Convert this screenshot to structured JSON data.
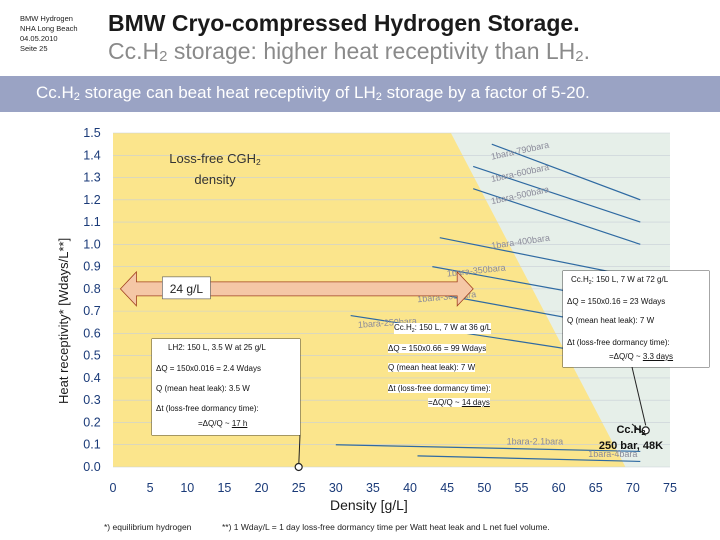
{
  "meta": [
    "BMW Hydrogen",
    "NHA Long Beach",
    "04.05.2010",
    "Seite 25"
  ],
  "header": {
    "title": "BMW Cryo-compressed Hydrogen Storage.",
    "subtitle_pre": "Cc.H",
    "subtitle_sub": "2",
    "subtitle_mid": " storage: higher heat receptivity than LH",
    "subtitle_sub2": "2",
    "subtitle_post": "."
  },
  "band": {
    "pre": "Cc.H",
    "sub": "2",
    "mid": " storage can beat heat receptivity of LH",
    "sub2": "2",
    "post": " storage by a factor of 5-20."
  },
  "colors": {
    "band": "#9aa3c4",
    "yellow_area": "#fbe58c",
    "plot_bg": "#e6efe9",
    "isobar": "#2f6aa2",
    "arrow": "#f5c7a6",
    "axis_text": "#1a3a78"
  },
  "chart_data": {
    "type": "line",
    "xlabel": "Density [g/L]",
    "ylabel": "Heat receptivity* [Wdays/L**]",
    "xlim": [
      0,
      75
    ],
    "ylim": [
      0,
      1.5
    ],
    "x_ticks": [
      "0",
      "5",
      "10",
      "15",
      "20",
      "25",
      "30",
      "35",
      "40",
      "45",
      "50",
      "55",
      "60",
      "65",
      "70",
      "75"
    ],
    "y_ticks": [
      "0.0",
      "0.1",
      "0.2",
      "0.3",
      "0.4",
      "0.5",
      "0.6",
      "0.7",
      "0.8",
      "0.9",
      "1.0",
      "1.1",
      "1.2",
      "1.3",
      "1.4",
      "1.5"
    ],
    "region_label_pre": "Loss-free CGH",
    "region_label_sub": "2",
    "region_label_post": "density",
    "yellow_boundary": [
      [
        0,
        1.5
      ],
      [
        45.5,
        1.5
      ],
      [
        69,
        0
      ]
    ],
    "isobars": [
      {
        "name": "1bara-790bara",
        "points": [
          [
            51,
            1.45
          ],
          [
            71,
            1.2
          ]
        ]
      },
      {
        "name": "1bara-600bara",
        "points": [
          [
            48.5,
            1.35
          ],
          [
            71,
            1.1
          ]
        ]
      },
      {
        "name": "1bara-500bara",
        "points": [
          [
            48.5,
            1.25
          ],
          [
            71,
            1.0
          ]
        ]
      },
      {
        "name": "1bara-400bara",
        "points": [
          [
            44,
            1.03
          ],
          [
            71,
            0.85
          ]
        ]
      },
      {
        "name": "1bara-350bara",
        "points": [
          [
            43,
            0.9
          ],
          [
            71,
            0.73
          ]
        ]
      },
      {
        "name": "1bara-300bara",
        "points": [
          [
            40,
            0.8
          ],
          [
            71,
            0.61
          ]
        ]
      },
      {
        "name": "1bara-250bara",
        "points": [
          [
            32,
            0.68
          ],
          [
            71,
            0.48
          ]
        ]
      },
      {
        "name": "1bara-2.1bara",
        "points": [
          [
            30,
            0.1
          ],
          [
            71,
            0.07
          ]
        ]
      },
      {
        "name": "1bara-4bara",
        "points": [
          [
            41,
            0.05
          ],
          [
            71,
            0.025
          ]
        ]
      }
    ],
    "isobar_labels": [
      {
        "text": "1bara-790bara",
        "x": 51,
        "y": 1.38,
        "angle": -12
      },
      {
        "text": "1bara-600bara",
        "x": 51,
        "y": 1.28,
        "angle": -12
      },
      {
        "text": "1bara-500bara",
        "x": 51,
        "y": 1.18,
        "angle": -12
      },
      {
        "text": "1bara-400bara",
        "x": 51,
        "y": 0.98,
        "angle": -8
      },
      {
        "text": "1bara-350bara",
        "x": 45,
        "y": 0.855,
        "angle": -6
      },
      {
        "text": "1bara-300bara",
        "x": 41,
        "y": 0.74,
        "angle": -5
      },
      {
        "text": "1bara-250bara",
        "x": 33,
        "y": 0.625,
        "angle": -4
      },
      {
        "text": "1bara-2.1bara",
        "x": 53,
        "y": 0.1,
        "angle": 0
      },
      {
        "text": "1bara-4bara",
        "x": 64,
        "y": 0.045,
        "angle": 0
      }
    ],
    "arrow": {
      "label": "24 g/L",
      "x_from": 1,
      "x_to": 48.5,
      "y": 0.8
    },
    "points": [
      {
        "name": "LH2",
        "x": 25,
        "y": 0.0
      },
      {
        "name": "CcH2",
        "x": 72,
        "y": 0.16
      }
    ],
    "annotations": {
      "lh2": {
        "title": "LH2: 150 L, 3.5 W at 25 g/L",
        "dq": "ΔQ = 150x0.016 = 2.4 Wdays",
        "leak": "Q (mean heat leak): 3.5 W",
        "dt": "Δt (loss-free dormancy time):",
        "res_pre": "=ΔQ/Q ~ ",
        "res_val": "17 h"
      },
      "cch2_36": {
        "title_pre": "Cc.H",
        "title_sub": "2",
        "title_post": ": 150 L, 7 W at 36 g/L",
        "dq": "ΔQ = 150x0.66 = 99 Wdays",
        "leak": "Q (mean heat leak): 7 W",
        "dt": "Δt (loss-free dormancy time):",
        "res_pre": "=ΔQ/Q ~ ",
        "res_val": "14 days"
      },
      "cch2_72": {
        "title_pre": "Cc.H",
        "title_sub": "2",
        "title_post": ": 150 L, 7 W at 72 g/L",
        "dq": "ΔQ = 150x0.16 = 23 Wdays",
        "leak": "Q (mean heat leak): 7 W",
        "dt": "Δt (loss-free dormancy time):",
        "res_pre": "=ΔQ/Q ~ ",
        "res_val": "3.3 days"
      },
      "point": {
        "l1_pre": "Cc.H",
        "l1_sub": "2",
        "l2": "250 bar, 48K"
      }
    }
  },
  "footnotes": {
    "f1": "*) equilibrium hydrogen",
    "f2": "**) 1 Wday/L = 1 day loss-free dormancy time per Watt heat leak and L net fuel volume."
  }
}
